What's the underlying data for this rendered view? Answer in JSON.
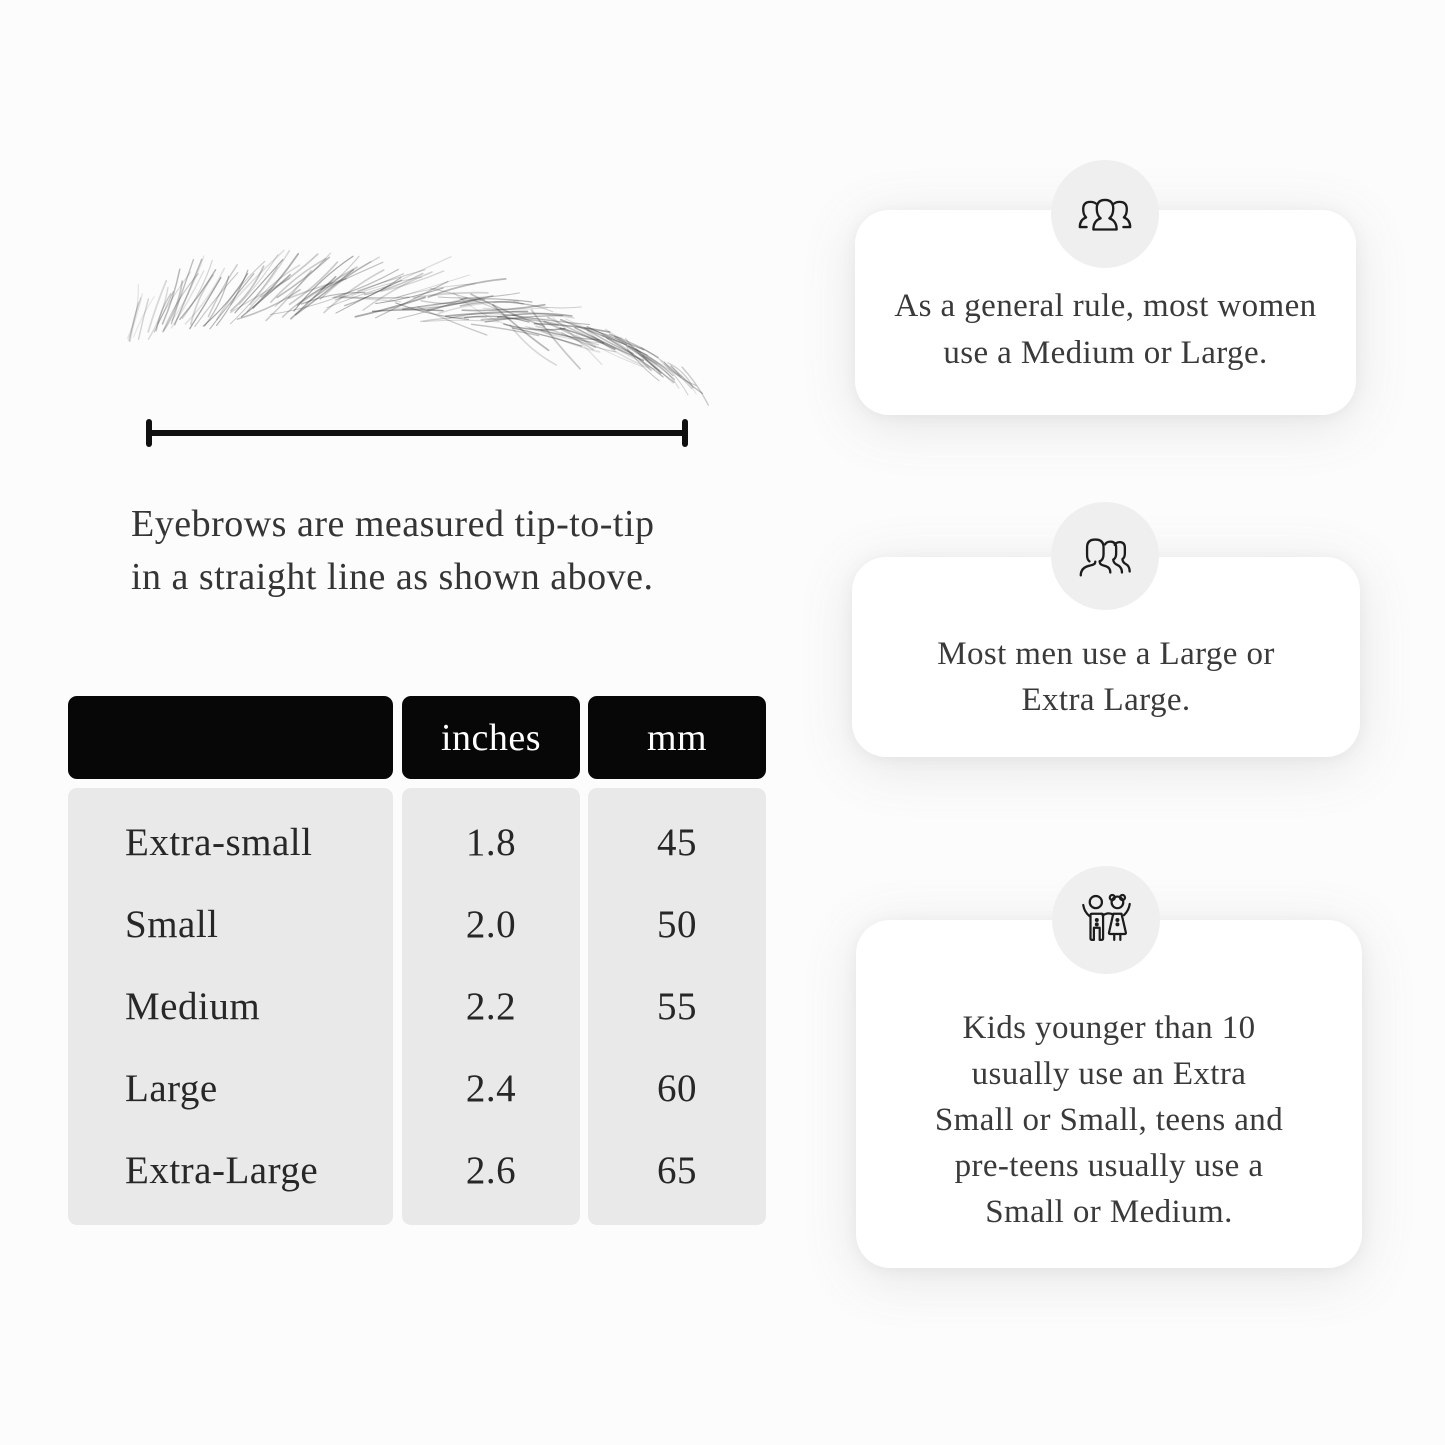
{
  "figure": {
    "caption_lines": [
      "Eyebrows are measured tip-to-tip",
      "in a straight line as shown above."
    ]
  },
  "table": {
    "headers": {
      "label": "",
      "inches": "inches",
      "mm": "mm"
    },
    "rows": [
      {
        "label": "Extra-small",
        "inches": "1.8",
        "mm": "45"
      },
      {
        "label": "Small",
        "inches": "2.0",
        "mm": "50"
      },
      {
        "label": "Medium",
        "inches": "2.2",
        "mm": "55"
      },
      {
        "label": "Large",
        "inches": "2.4",
        "mm": "60"
      },
      {
        "label": "Extra-Large",
        "inches": "2.6",
        "mm": "65"
      }
    ]
  },
  "cards": [
    {
      "icon": "group-of-people-icon",
      "lines": [
        "As a general rule, most women",
        "use a Medium or Large."
      ]
    },
    {
      "icon": "men-group-icon",
      "lines": [
        "Most men use a Large or",
        "Extra Large."
      ]
    },
    {
      "icon": "children-icon",
      "lines": [
        "Kids younger than 10",
        "usually use an Extra",
        "Small or Small, teens and",
        "pre-teens usually use a",
        "Small or Medium."
      ]
    }
  ],
  "colors": {
    "page_bg": "#fcfcfc",
    "table_header_bg": "#070707",
    "table_header_text": "#ffffff",
    "table_row_bg": "#e9e9e9",
    "card_bg": "#ffffff",
    "icon_circle_bg": "#f0efef",
    "body_text": "#353535",
    "line_art": "#1c1c1c"
  }
}
